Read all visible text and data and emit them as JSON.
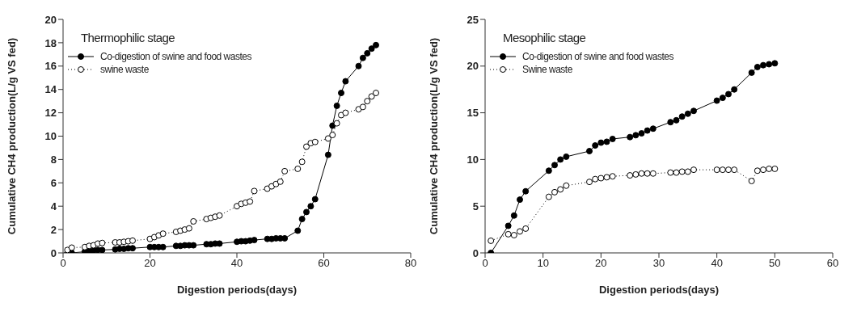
{
  "chart_data": [
    {
      "type": "line",
      "title": "Thermophilic stage",
      "xlabel": "Digestion periods(days)",
      "ylabel": "Cumulative CH4 production(L/g VS fed)",
      "x": [
        1,
        2,
        5,
        6,
        7,
        8,
        9,
        12,
        13,
        14,
        15,
        16,
        20,
        21,
        22,
        23,
        26,
        27,
        28,
        29,
        30,
        33,
        34,
        35,
        36,
        40,
        41,
        42,
        43,
        44,
        47,
        48,
        49,
        50,
        51,
        54,
        55,
        56,
        57,
        58,
        61,
        62,
        63,
        64,
        65,
        68,
        69,
        70,
        71,
        72
      ],
      "xlim": [
        0,
        80
      ],
      "xticks": [
        0,
        20,
        40,
        60,
        80
      ],
      "ylim": [
        0,
        20
      ],
      "yticks": [
        0,
        2,
        4,
        6,
        8,
        10,
        12,
        14,
        16,
        18,
        20
      ],
      "legend": "top left",
      "marker": "circle",
      "series": [
        {
          "name": "Co-digestion of swine and food wastes",
          "color": "#000000",
          "line_style": "solid",
          "values": [
            0,
            0,
            0.1,
            0.15,
            0.2,
            0.25,
            0.25,
            0.3,
            0.35,
            0.35,
            0.4,
            0.4,
            0.5,
            0.5,
            0.5,
            0.5,
            0.6,
            0.6,
            0.65,
            0.65,
            0.65,
            0.75,
            0.75,
            0.8,
            0.8,
            0.95,
            1.0,
            1.0,
            1.05,
            1.1,
            1.2,
            1.2,
            1.25,
            1.25,
            1.25,
            1.9,
            2.9,
            3.5,
            4.0,
            4.6,
            8.4,
            10.9,
            12.6,
            13.7,
            14.7,
            16.0,
            16.7,
            17.1,
            17.5,
            17.8
          ]
        },
        {
          "name": "swine waste",
          "color": "#000000",
          "line_style": "dotted",
          "values": [
            0.25,
            0.45,
            0.5,
            0.6,
            0.65,
            0.8,
            0.85,
            0.9,
            0.9,
            0.95,
            1.0,
            1.05,
            1.2,
            1.35,
            1.5,
            1.65,
            1.8,
            1.9,
            2.0,
            2.1,
            2.7,
            2.9,
            3.0,
            3.1,
            3.2,
            4.0,
            4.2,
            4.3,
            4.4,
            5.3,
            5.5,
            5.7,
            5.9,
            6.1,
            7.0,
            7.2,
            7.8,
            9.1,
            9.4,
            9.5,
            9.8,
            10.1,
            11.1,
            11.8,
            12.0,
            12.3,
            12.5,
            13.0,
            13.4,
            13.7
          ]
        }
      ]
    },
    {
      "type": "line",
      "title": "Mesophilic stage",
      "xlabel": "Digestion periods(days)",
      "ylabel": "Cumulative CH4 production(L/g VS fed)",
      "x": [
        1,
        4,
        5,
        6,
        7,
        11,
        12,
        13,
        14,
        18,
        19,
        20,
        21,
        22,
        25,
        26,
        27,
        28,
        29,
        32,
        33,
        34,
        35,
        36,
        40,
        41,
        42,
        43,
        46,
        47,
        48,
        49,
        50
      ],
      "xlim": [
        0,
        60
      ],
      "xticks": [
        0,
        10,
        20,
        30,
        40,
        50,
        60
      ],
      "ylim": [
        0,
        25
      ],
      "yticks": [
        0,
        5,
        10,
        15,
        20,
        25
      ],
      "legend": "top left",
      "marker": "circle",
      "series": [
        {
          "name": "Co-digestion of swine and food wastes",
          "color": "#000000",
          "line_style": "solid",
          "values": [
            0,
            2.9,
            4.0,
            5.7,
            6.6,
            8.8,
            9.4,
            10.0,
            10.3,
            10.9,
            11.5,
            11.8,
            11.9,
            12.2,
            12.4,
            12.6,
            12.8,
            13.1,
            13.3,
            14.0,
            14.2,
            14.6,
            14.9,
            15.2,
            16.3,
            16.6,
            17.0,
            17.5,
            19.3,
            19.9,
            20.1,
            20.2,
            20.3
          ]
        },
        {
          "name": "Swine waste",
          "color": "#000000",
          "line_style": "dotted",
          "values": [
            1.3,
            2.0,
            1.9,
            2.3,
            2.6,
            6.0,
            6.5,
            6.8,
            7.2,
            7.6,
            7.9,
            8.0,
            8.1,
            8.2,
            8.3,
            8.4,
            8.5,
            8.5,
            8.5,
            8.6,
            8.6,
            8.7,
            8.7,
            8.9,
            8.9,
            8.9,
            8.9,
            8.9,
            7.7,
            8.8,
            8.9,
            9.0,
            9.0
          ]
        }
      ]
    }
  ]
}
